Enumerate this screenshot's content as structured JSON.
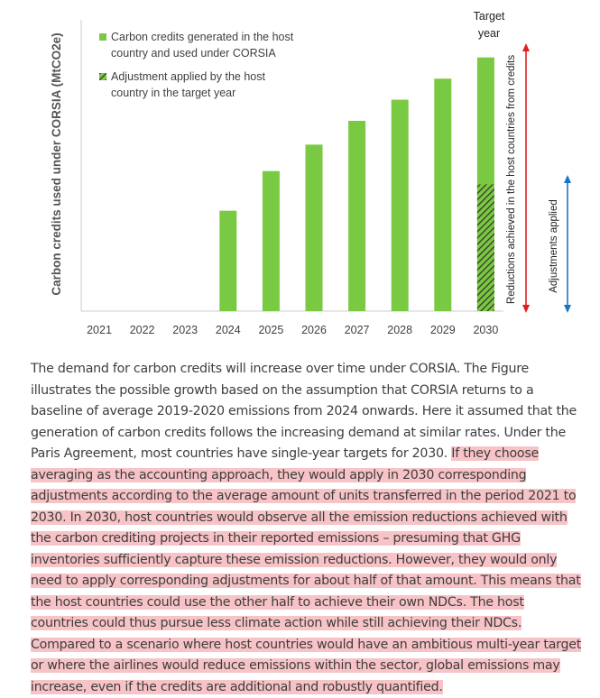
{
  "chart_data": {
    "type": "bar",
    "ylabel": "Carbon credits used under CORSIA (MtCO2e)",
    "categories": [
      "2021",
      "2022",
      "2023",
      "2024",
      "2025",
      "2026",
      "2027",
      "2028",
      "2029",
      "2030"
    ],
    "series": [
      {
        "name": "Carbon credits generated in the host country and used under CORSIA",
        "legend_lines": [
          "Carbon credits generated in the host",
          "country and used under CORSIA"
        ],
        "color": "#7ac943",
        "values": [
          0,
          0,
          0,
          38,
          53,
          63,
          72,
          80,
          88,
          96
        ]
      },
      {
        "name": "Adjustment applied by the host country in the target year",
        "legend_lines": [
          "Adjustment applied by the host",
          "country in the target year"
        ],
        "color": "#4a7a2a",
        "pattern": "hatched",
        "values": [
          0,
          0,
          0,
          0,
          0,
          0,
          0,
          0,
          0,
          48
        ]
      }
    ],
    "ylim": [
      0,
      100
    ],
    "annotations": {
      "target_year_lines": [
        "Target",
        "year"
      ],
      "red_arrow_label": "Reductions achieved in the host countries from credits",
      "blue_arrow_label": "Adjustments applied"
    }
  },
  "article": {
    "normal_text": "The demand for carbon credits will increase over time under CORSIA. The Figure illustrates the possible growth based on the assumption that CORSIA returns to a baseline of average 2019-2020 emissions from 2024 onwards. Here it assumed that the generation of carbon credits follows the increasing demand at similar rates. Under the Paris Agreement, most countries have single-year targets for 2030. ",
    "highlighted_text": "If they choose averaging as the accounting approach, they would apply in 2030 corresponding adjustments according to the average amount of units transferred in the period 2021 to 2030. In 2030, host countries would observe all the emission reductions achieved with the carbon crediting projects in their reported emissions – presuming that GHG inventories sufficiently capture these emission reductions. However, they would only need to apply corresponding adjustments for about half of that amount. This means that the host countries could use the other half to achieve their own NDCs. The host countries could thus pursue less climate action while still achieving their NDCs. Compared to a scenario where host countries would have an ambitious multi-year target or where the airlines would reduce emissions within the sector, global emissions may increase, even if the credits are additional and robustly quantified.",
    "highlight_color": "#f7c3c7"
  }
}
